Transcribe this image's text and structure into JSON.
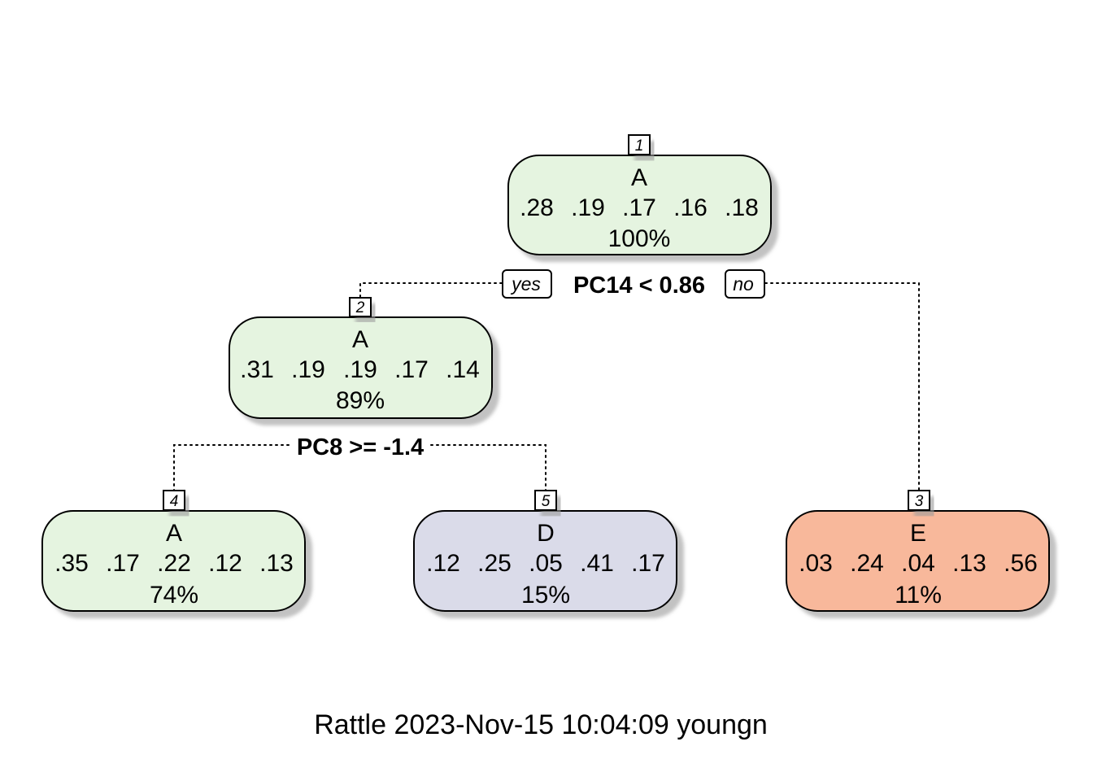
{
  "colors": {
    "A": "#e5f4e0",
    "D": "#dadbe9",
    "E": "#f8b89b"
  },
  "nodes": [
    {
      "id": "1",
      "number": "1",
      "class": "A",
      "probs": [
        ".28",
        ".19",
        ".17",
        ".16",
        ".18"
      ],
      "pct": "100%"
    },
    {
      "id": "2",
      "number": "2",
      "class": "A",
      "probs": [
        ".31",
        ".19",
        ".19",
        ".17",
        ".14"
      ],
      "pct": "89%"
    },
    {
      "id": "3",
      "number": "3",
      "class": "E",
      "probs": [
        ".03",
        ".24",
        ".04",
        ".13",
        ".56"
      ],
      "pct": "11%"
    },
    {
      "id": "4",
      "number": "4",
      "class": "A",
      "probs": [
        ".35",
        ".17",
        ".22",
        ".12",
        ".13"
      ],
      "pct": "74%"
    },
    {
      "id": "5",
      "number": "5",
      "class": "D",
      "probs": [
        ".12",
        ".25",
        ".05",
        ".41",
        ".17"
      ],
      "pct": "15%"
    }
  ],
  "splits": [
    {
      "id": "split-1",
      "label": "PC14 < 0.86",
      "yes": "yes",
      "no": "no"
    },
    {
      "id": "split-2",
      "label": "PC8 >= -1.4"
    }
  ],
  "footer": "Rattle 2023-Nov-15 10:04:09 youngn"
}
